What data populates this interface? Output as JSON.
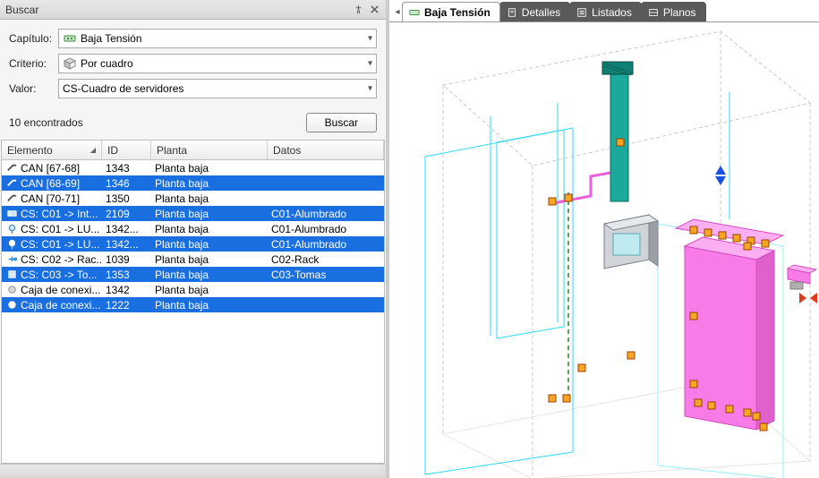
{
  "panel": {
    "title": "Buscar"
  },
  "form": {
    "capitulo_label": "Capítulo:",
    "capitulo_value": "Baja Tensión",
    "criterio_label": "Criterio:",
    "criterio_value": "Por cuadro",
    "valor_label": "Valor:",
    "valor_value": "CS-Cuadro de servidores"
  },
  "count_row": {
    "count_text": "10 encontrados",
    "button": "Buscar"
  },
  "columns": {
    "elem": "Elemento",
    "id": "ID",
    "plan": "Planta",
    "dat": "Datos"
  },
  "rows": [
    {
      "icon": "cable",
      "elem": "CAN [67-68]",
      "id": "1343",
      "plan": "Planta baja",
      "dat": "",
      "sel": false
    },
    {
      "icon": "cable",
      "elem": "CAN [68-69]",
      "id": "1346",
      "plan": "Planta baja",
      "dat": "",
      "sel": true
    },
    {
      "icon": "cable",
      "elem": "CAN [70-71]",
      "id": "1350",
      "plan": "Planta baja",
      "dat": "",
      "sel": false
    },
    {
      "icon": "circuit",
      "elem": "CS: C01 -> Int...",
      "id": "2109",
      "plan": "Planta baja",
      "dat": "C01-Alumbrado",
      "sel": true
    },
    {
      "icon": "lamp",
      "elem": "CS: C01 -> LU...",
      "id": "1342...",
      "plan": "Planta baja",
      "dat": "C01-Alumbrado",
      "sel": false
    },
    {
      "icon": "lamp",
      "elem": "CS: C01 -> LU...",
      "id": "1342...",
      "plan": "Planta baja",
      "dat": "C01-Alumbrado",
      "sel": true
    },
    {
      "icon": "plug",
      "elem": "CS: C02 -> Rac...",
      "id": "1039",
      "plan": "Planta baja",
      "dat": "C02-Rack",
      "sel": false
    },
    {
      "icon": "socket",
      "elem": "CS: C03 -> To...",
      "id": "1353",
      "plan": "Planta baja",
      "dat": "C03-Tomas",
      "sel": true
    },
    {
      "icon": "box",
      "elem": "Caja de conexi...",
      "id": "1342",
      "plan": "Planta baja",
      "dat": "",
      "sel": false
    },
    {
      "icon": "box",
      "elem": "Caja de conexi...",
      "id": "1222",
      "plan": "Planta baja",
      "dat": "",
      "sel": true
    }
  ],
  "tabs": [
    {
      "icon": "bt",
      "label": "Baja Tensión",
      "active": true
    },
    {
      "icon": "doc",
      "label": "Detalles",
      "active": false
    },
    {
      "icon": "list",
      "label": "Listados",
      "active": false
    },
    {
      "icon": "plan",
      "label": "Planos",
      "active": false
    }
  ],
  "colors": {
    "selection": "#1a6fe0",
    "wire_cyan": "#2bd8f5",
    "wire_cyan_light": "#97ecf9",
    "pink_fill": "#f97be8",
    "pink_fill_light": "#fcaef2",
    "teal": "#1aa99b",
    "teal_dark": "#108072",
    "grey_box": "#b8bec4",
    "handle_orange": "#f5a623",
    "handle_red": "#e03a1a",
    "handle_blue": "#1a4fe0",
    "dash_green": "#2a8a2a"
  },
  "scene": {
    "type": "isometric-3d-view",
    "background": "#ffffff",
    "bounding_box_color": "#c9c9c9",
    "floor_grid_color": "#2bd8f5",
    "selected_objects_color": "#f97be8",
    "duct_color": "#1aa99b",
    "panel_color": "#b8bec4",
    "handles": {
      "fill": "#f5a623",
      "stroke": "#a04000",
      "size": 8
    },
    "axis_arrows": {
      "x": "#e03a1a",
      "y": "#2a8a2a",
      "z": "#1a4fe0"
    }
  }
}
